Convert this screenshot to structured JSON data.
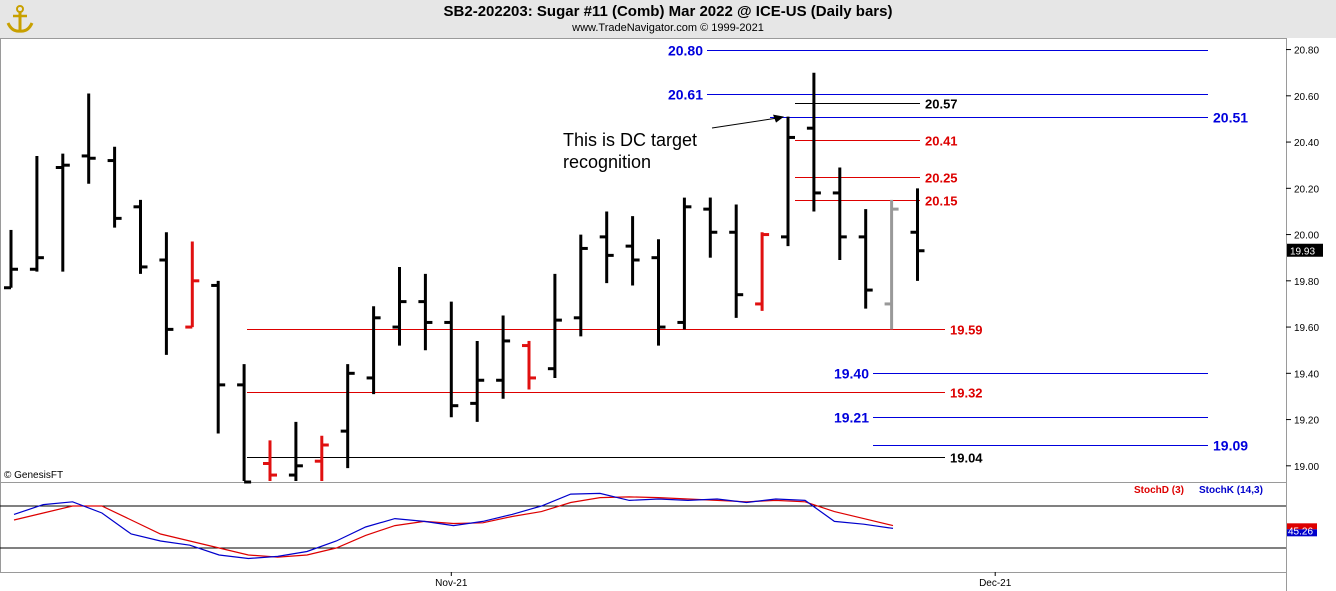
{
  "header": {
    "title": "SB2-202203:  Sugar #11 (Comb) Mar 2022 @ ICE-US  (Daily bars)",
    "subtitle": "www.TradeNavigator.com © 1999-2021",
    "copyright": "© GenesisFT"
  },
  "colors": {
    "bar_up": "#000000",
    "bar_down_red": "#e01010",
    "bar_green": "#22bb22",
    "bar_gray": "#999999",
    "level_blue": "#0000dd",
    "level_red": "#dd0000",
    "level_black": "#000000",
    "stoch_d": "#dd0000",
    "stoch_k": "#0000cc",
    "header_bg": "#e6e6e6"
  },
  "chart_data": {
    "type": "ohlc",
    "price_axis": {
      "min": 18.93,
      "max": 20.85,
      "ticks": [
        "20.80",
        "20.60",
        "20.40",
        "20.20",
        "20.00",
        "19.80",
        "19.60",
        "19.40",
        "19.20",
        "19.00"
      ],
      "last_value_label": "19.93"
    },
    "time_axis": {
      "labels": [
        {
          "text": "Nov-21",
          "bar": 17
        },
        {
          "text": "Dec-21",
          "bar": 38
        }
      ]
    },
    "bars": [
      {
        "o": 19.77,
        "h": 20.02,
        "l": 19.77,
        "c": 19.85,
        "color": "black"
      },
      {
        "o": 19.85,
        "h": 20.34,
        "l": 19.84,
        "c": 19.9,
        "color": "black"
      },
      {
        "o": 20.29,
        "h": 20.35,
        "l": 19.84,
        "c": 20.3,
        "color": "black"
      },
      {
        "o": 20.34,
        "h": 20.61,
        "l": 20.22,
        "c": 20.33,
        "color": "black"
      },
      {
        "o": 20.32,
        "h": 20.38,
        "l": 20.03,
        "c": 20.07,
        "color": "black"
      },
      {
        "o": 20.12,
        "h": 20.15,
        "l": 19.83,
        "c": 19.86,
        "color": "black"
      },
      {
        "o": 19.89,
        "h": 20.01,
        "l": 19.48,
        "c": 19.59,
        "color": "black"
      },
      {
        "o": 19.6,
        "h": 19.97,
        "l": 19.6,
        "c": 19.8,
        "color": "red"
      },
      {
        "o": 19.78,
        "h": 19.8,
        "l": 19.14,
        "c": 19.35,
        "color": "black"
      },
      {
        "o": 19.35,
        "h": 19.44,
        "l": 18.93,
        "c": 18.93,
        "color": "black"
      },
      {
        "o": 19.01,
        "h": 19.11,
        "l": 18.93,
        "c": 18.96,
        "color": "red"
      },
      {
        "o": 18.96,
        "h": 19.19,
        "l": 18.93,
        "c": 19.0,
        "color": "black"
      },
      {
        "o": 19.02,
        "h": 19.13,
        "l": 18.93,
        "c": 19.09,
        "color": "red"
      },
      {
        "o": 19.15,
        "h": 19.44,
        "l": 18.99,
        "c": 19.4,
        "color": "black"
      },
      {
        "o": 19.38,
        "h": 19.69,
        "l": 19.31,
        "c": 19.64,
        "color": "black"
      },
      {
        "o": 19.6,
        "h": 19.86,
        "l": 19.52,
        "c": 19.71,
        "color": "black"
      },
      {
        "o": 19.71,
        "h": 19.83,
        "l": 19.5,
        "c": 19.62,
        "color": "black"
      },
      {
        "o": 19.62,
        "h": 19.71,
        "l": 19.21,
        "c": 19.26,
        "color": "black"
      },
      {
        "o": 19.27,
        "h": 19.54,
        "l": 19.19,
        "c": 19.37,
        "color": "black"
      },
      {
        "o": 19.37,
        "h": 19.65,
        "l": 19.29,
        "c": 19.54,
        "color": "black"
      },
      {
        "o": 19.52,
        "h": 19.54,
        "l": 19.33,
        "c": 19.38,
        "color": "red"
      },
      {
        "o": 19.42,
        "h": 19.83,
        "l": 19.38,
        "c": 19.63,
        "color": "black"
      },
      {
        "o": 19.64,
        "h": 20.0,
        "l": 19.56,
        "c": 19.94,
        "color": "black"
      },
      {
        "o": 19.99,
        "h": 20.1,
        "l": 19.79,
        "c": 19.91,
        "color": "black"
      },
      {
        "o": 19.95,
        "h": 20.08,
        "l": 19.78,
        "c": 19.89,
        "color": "black"
      },
      {
        "o": 19.9,
        "h": 19.98,
        "l": 19.52,
        "c": 19.6,
        "color": "black"
      },
      {
        "o": 19.62,
        "h": 20.16,
        "l": 19.59,
        "c": 20.12,
        "color": "black"
      },
      {
        "o": 20.11,
        "h": 20.16,
        "l": 19.9,
        "c": 20.01,
        "color": "black"
      },
      {
        "o": 20.01,
        "h": 20.13,
        "l": 19.64,
        "c": 19.74,
        "color": "black"
      },
      {
        "o": 19.7,
        "h": 20.01,
        "l": 19.67,
        "c": 20.0,
        "color": "red"
      },
      {
        "o": 19.99,
        "h": 20.51,
        "l": 19.95,
        "c": 20.42,
        "color": "black"
      },
      {
        "o": 20.46,
        "h": 20.7,
        "l": 20.1,
        "c": 20.18,
        "color": "black"
      },
      {
        "o": 20.18,
        "h": 20.29,
        "l": 19.89,
        "c": 19.99,
        "color": "black"
      },
      {
        "o": 19.99,
        "h": 20.11,
        "l": 19.68,
        "c": 19.76,
        "color": "black"
      },
      {
        "o": 19.7,
        "h": 20.15,
        "l": 19.59,
        "c": 20.11,
        "color": "gray"
      },
      {
        "o": 20.01,
        "h": 20.2,
        "l": 19.8,
        "c": 19.93,
        "color": "black"
      }
    ],
    "levels": [
      {
        "value": 20.8,
        "label": "20.80",
        "color": "blue",
        "x1": 707,
        "x2": 1208,
        "label_side": "left"
      },
      {
        "value": 20.61,
        "label": "20.61",
        "color": "blue",
        "x1": 707,
        "x2": 1208,
        "label_side": "left"
      },
      {
        "value": 20.57,
        "label": "20.57",
        "color": "black",
        "x1": 795,
        "x2": 920,
        "label_side": "right"
      },
      {
        "value": 20.51,
        "label": "20.51",
        "color": "blue",
        "x1": 770,
        "x2": 1208,
        "label_side": "right"
      },
      {
        "value": 20.41,
        "label": "20.41",
        "color": "red",
        "x1": 795,
        "x2": 920,
        "label_side": "right"
      },
      {
        "value": 20.25,
        "label": "20.25",
        "color": "red",
        "x1": 795,
        "x2": 920,
        "label_side": "right"
      },
      {
        "value": 20.15,
        "label": "20.15",
        "color": "red",
        "x1": 795,
        "x2": 920,
        "label_side": "right"
      },
      {
        "value": 19.59,
        "label": "19.59",
        "color": "red",
        "x1": 247,
        "x2": 945,
        "label_side": "right"
      },
      {
        "value": 19.4,
        "label": "19.40",
        "color": "blue",
        "x1": 873,
        "x2": 1208,
        "label_side": "left"
      },
      {
        "value": 19.32,
        "label": "19.32",
        "color": "red",
        "x1": 247,
        "x2": 945,
        "label_side": "right"
      },
      {
        "value": 19.21,
        "label": "19.21",
        "color": "blue",
        "x1": 873,
        "x2": 1208,
        "label_side": "left"
      },
      {
        "value": 19.09,
        "label": "19.09",
        "color": "blue",
        "x1": 873,
        "x2": 1208,
        "label_side": "right"
      },
      {
        "value": 19.04,
        "label": "19.04",
        "color": "black",
        "x1": 247,
        "x2": 945,
        "label_side": "right"
      }
    ],
    "annotations": [
      {
        "text": "This is DC target",
        "anchor_bar": 30,
        "anchor_value": 20.51
      },
      {
        "text": "recognition"
      }
    ],
    "stochastics": {
      "legend": [
        "StochD (3)",
        "StochK (14,3)"
      ],
      "last_value_label": "45.26",
      "range": [
        0,
        100
      ],
      "k": [
        68,
        82,
        86,
        70,
        40,
        30,
        24,
        10,
        5,
        8,
        15,
        30,
        50,
        62,
        58,
        52,
        58,
        68,
        80,
        97,
        98,
        88,
        90,
        88,
        90,
        85,
        90,
        88,
        58,
        54,
        48
      ],
      "d": [
        60,
        70,
        80,
        80,
        60,
        40,
        30,
        20,
        10,
        7,
        10,
        20,
        38,
        52,
        58,
        55,
        56,
        65,
        72,
        85,
        92,
        93,
        92,
        90,
        88,
        86,
        88,
        86,
        72,
        62,
        52
      ]
    }
  }
}
